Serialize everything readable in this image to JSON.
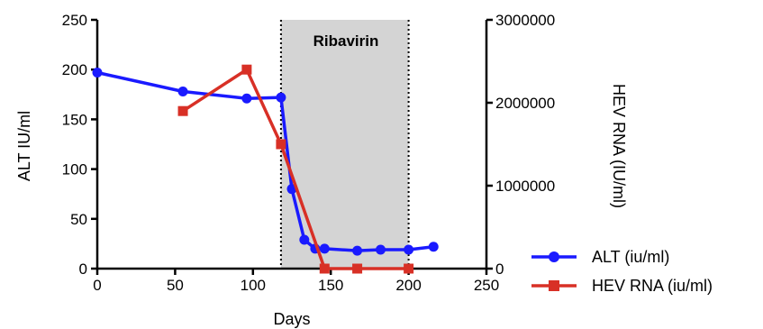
{
  "chart_data": {
    "type": "line",
    "title": "",
    "xlabel": "Days",
    "ylabel_left": "ALT IU/ml",
    "ylabel_right": "HEV RNA (IU/ml)",
    "xlim": [
      0,
      250
    ],
    "ylim_left": [
      0,
      250
    ],
    "ylim_right": [
      0,
      3000000
    ],
    "x_ticks": [
      "0",
      "50",
      "100",
      "150",
      "200",
      "250"
    ],
    "y_left_ticks": [
      "0",
      "50",
      "100",
      "150",
      "200",
      "250"
    ],
    "y_right_ticks": [
      "0",
      "1000000",
      "2000000",
      "3000000"
    ],
    "grid": false,
    "legend_position": "right",
    "shaded_region": {
      "label": "Ribavirin",
      "x_start": 118,
      "x_end": 200,
      "color": "#d4d4d4"
    },
    "series": [
      {
        "name": "ALT (iu/ml)",
        "axis": "left",
        "color": "#1a1aff",
        "marker": "circle",
        "x": [
          0,
          55,
          96,
          118,
          125,
          133,
          140,
          146,
          167,
          182,
          200,
          216
        ],
        "y": [
          197,
          178,
          171,
          172,
          80,
          29,
          20,
          20,
          18,
          19,
          19,
          22
        ]
      },
      {
        "name": "HEV RNA (iu/ml)",
        "axis": "right",
        "color": "#d83026",
        "marker": "square",
        "x": [
          55,
          96,
          118,
          146,
          167,
          200
        ],
        "y": [
          1900000,
          2400000,
          1500000,
          0,
          0,
          0
        ]
      }
    ]
  }
}
